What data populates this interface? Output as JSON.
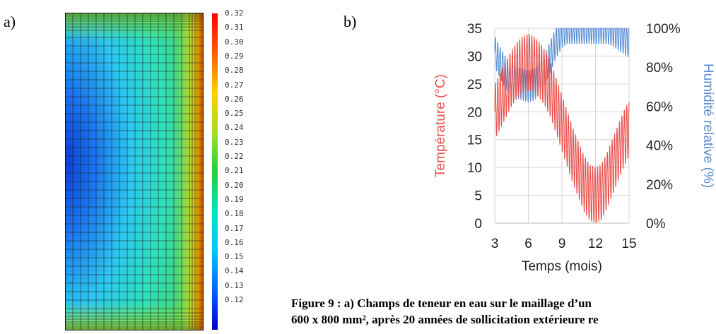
{
  "panels": {
    "a_label": "a)",
    "b_label": "b)"
  },
  "colors": {
    "temperature": "#e8504d",
    "humidity": "#5b8fd4",
    "colormap": [
      "#0000c8",
      "#0060ff",
      "#00c8ff",
      "#00e6c0",
      "#20d040",
      "#a0e020",
      "#ffd000",
      "#ff6000",
      "#ff0000"
    ]
  },
  "chart_data": [
    {
      "type": "heatmap",
      "title": "",
      "colorbar": {
        "min": 0.12,
        "max": 0.32,
        "ticks": [
          "0.32",
          "0.31",
          "0.30",
          "0.29",
          "0.28",
          "0.27",
          "0.26",
          "0.25",
          "0.24",
          "0.23",
          "0.22",
          "0.21",
          "0.20",
          "0.19",
          "0.18",
          "0.17",
          "0.16",
          "0.15",
          "0.14",
          "0.13",
          "0.12"
        ]
      }
    },
    {
      "type": "line",
      "xlabel": "Temps (mois)",
      "ylabel_left": "Température (°C)",
      "ylabel_right": "Humidité relative (%)",
      "xlim": [
        3,
        15
      ],
      "ylim_left": [
        0,
        35
      ],
      "ylim_right": [
        0,
        100
      ],
      "x_ticks": [
        "3",
        "6",
        "9",
        "12",
        "15"
      ],
      "y_left_ticks": [
        "0",
        "5",
        "10",
        "15",
        "20",
        "25",
        "30",
        "35"
      ],
      "y_right_ticks": [
        "0%",
        "20%",
        "40%",
        "60%",
        "80%",
        "100%"
      ],
      "grid": true,
      "series": [
        {
          "name": "Température (°C)",
          "axis": "left",
          "x": [
            3,
            3.5,
            4,
            4.5,
            5,
            5.5,
            6,
            6.5,
            7,
            7.5,
            8,
            8.5,
            9,
            9.5,
            10,
            10.5,
            11,
            11.5,
            12,
            12.5,
            13,
            13.5,
            14,
            14.5,
            15
          ],
          "values": [
            20,
            22,
            24,
            26,
            27.5,
            28.5,
            29,
            28.5,
            27.5,
            26,
            24,
            21,
            18,
            15,
            12,
            9.5,
            7,
            5.5,
            5,
            5.5,
            7.5,
            10,
            12.5,
            15,
            17
          ],
          "daily_amplitude": 5
        },
        {
          "name": "Humidité relative (%)",
          "axis": "right",
          "x": [
            3,
            3.5,
            4,
            4.5,
            5,
            5.5,
            6,
            6.5,
            7,
            7.5,
            8,
            8.5,
            9,
            9.5,
            10,
            10.5,
            11,
            11.5,
            12,
            12.5,
            13,
            13.5,
            14,
            14.5,
            15
          ],
          "values": [
            88,
            82,
            77,
            74,
            72,
            71,
            70,
            71,
            74,
            79,
            86,
            93,
            98,
            100,
            100,
            100,
            100,
            100,
            100,
            100,
            100,
            99,
            97,
            95,
            93
          ],
          "daily_amplitude": 8
        }
      ]
    }
  ],
  "caption": {
    "line1": "Figure 9 : a) Champs de teneur en eau sur le maillage d’un",
    "line2": "600 x 800 mm², après 20 années de sollicitation extérieure re"
  }
}
